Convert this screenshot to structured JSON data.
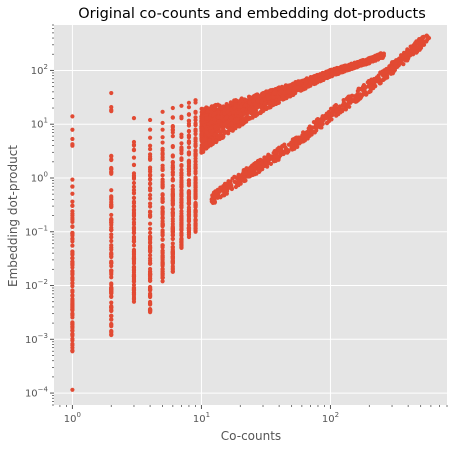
{
  "chart_data": {
    "type": "scatter",
    "title": "Original co-counts and embedding dot-products",
    "xlabel": "Co-counts",
    "ylabel": "Embedding dot-product",
    "xscale": "log",
    "yscale": "log",
    "xlim": [
      0.72,
      800
    ],
    "ylim": [
      6e-05,
      700
    ],
    "grid": true,
    "style": "ggplot",
    "marker_color": "#E24A33",
    "background_color": "#E5E5E5",
    "x_tick_labels": [
      "10^0",
      "10^1",
      "10^2"
    ],
    "y_tick_labels": [
      "10^-4",
      "10^-3",
      "10^-2",
      "10^-1",
      "10^0",
      "10^1",
      "10^2"
    ],
    "x_tick_values": [
      1,
      10,
      100
    ],
    "y_tick_values": [
      0.0001,
      0.001,
      0.01,
      0.1,
      1,
      10,
      100
    ],
    "columns": [
      {
        "x": 1,
        "y_top": 14,
        "y_bottom": 0.0006,
        "y_outliers": [
          0.000115,
          0.003
        ]
      },
      {
        "x": 2,
        "y_top": 38,
        "y_bottom": 0.0012,
        "y_outliers": []
      },
      {
        "x": 3,
        "y_top": 13,
        "y_bottom": 0.0055,
        "y_outliers": [
          0.005
        ]
      },
      {
        "x": 4,
        "y_top": 12,
        "y_bottom": 0.0032,
        "y_outliers": []
      },
      {
        "x": 5,
        "y_top": 17,
        "y_bottom": 0.012,
        "y_outliers": []
      },
      {
        "x": 6,
        "y_top": 20,
        "y_bottom": 0.018,
        "y_outliers": []
      },
      {
        "x": 7,
        "y_top": 22,
        "y_bottom": 0.05,
        "y_outliers": []
      },
      {
        "x": 8,
        "y_top": 25,
        "y_bottom": 0.08,
        "y_outliers": []
      },
      {
        "x": 9,
        "y_top": 28,
        "y_bottom": 0.1,
        "y_outliers": []
      }
    ],
    "upper_band": [
      {
        "x": 10,
        "y": 12
      },
      {
        "x": 20,
        "y": 22
      },
      {
        "x": 50,
        "y": 50
      },
      {
        "x": 100,
        "y": 95
      },
      {
        "x": 200,
        "y": 160
      },
      {
        "x": 250,
        "y": 200
      }
    ],
    "lower_band": [
      {
        "x": 12,
        "y": 0.4
      },
      {
        "x": 20,
        "y": 1.0
      },
      {
        "x": 50,
        "y": 4
      },
      {
        "x": 100,
        "y": 15
      },
      {
        "x": 200,
        "y": 50
      },
      {
        "x": 300,
        "y": 110
      },
      {
        "x": 500,
        "y": 320
      },
      {
        "x": 580,
        "y": 400
      }
    ]
  }
}
